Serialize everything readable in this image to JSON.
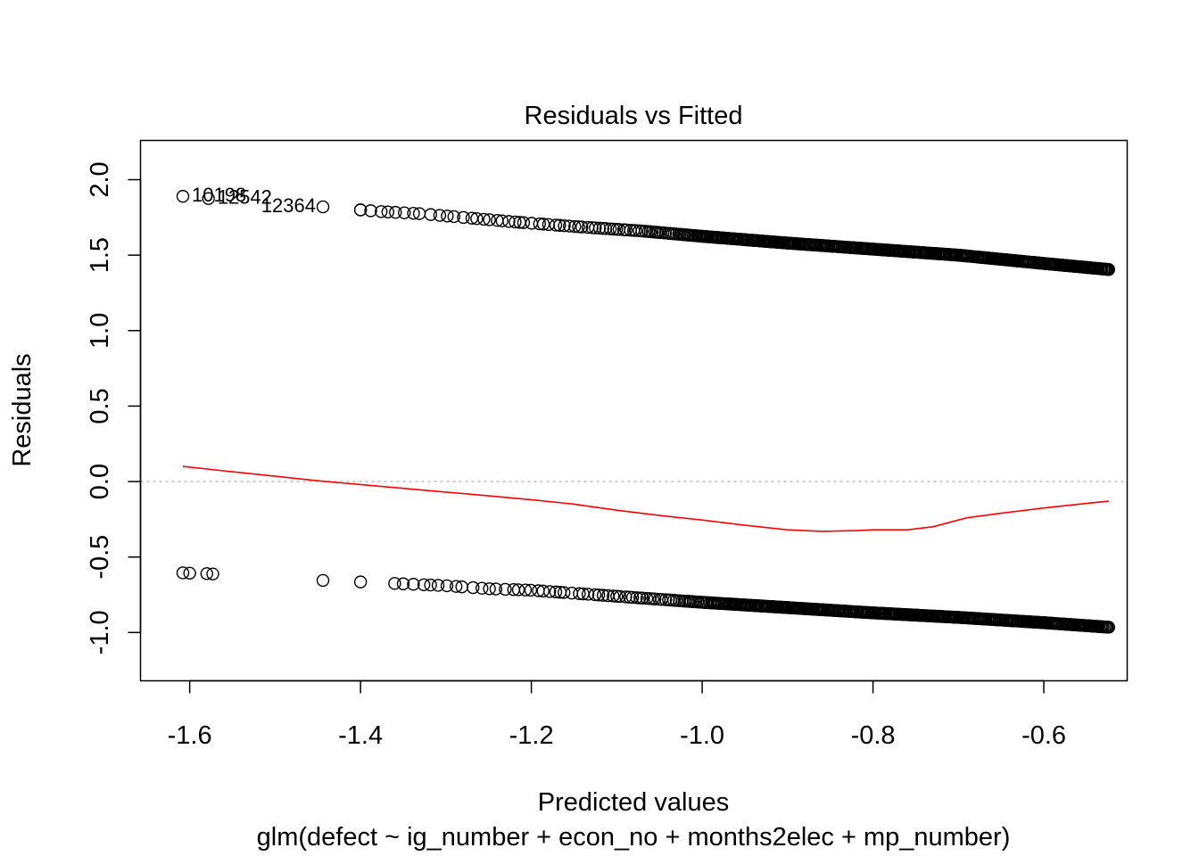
{
  "chart_data": {
    "type": "scatter",
    "title": "Residuals vs Fitted",
    "xlabel": "Predicted values",
    "subtitle": "glm(defect ~ ig_number + econ_no + months2elec + mp_number)",
    "ylabel": "Residuals",
    "xlim": [
      -1.6576,
      -0.5024
    ],
    "ylim": [
      -1.32,
      2.26
    ],
    "xticks": [
      -1.6,
      -1.4,
      -1.2,
      -1.0,
      -0.8,
      -0.6
    ],
    "xtick_labels": [
      "-1.6",
      "-1.4",
      "-1.2",
      "-1.0",
      "-0.8",
      "-0.6"
    ],
    "yticks": [
      -1.0,
      -0.5,
      0.0,
      0.5,
      1.0,
      1.5,
      2.0
    ],
    "ytick_labels": [
      "-1.0",
      "-0.5",
      "0.0",
      "0.5",
      "1.0",
      "1.5",
      "2.0"
    ],
    "reference_line": {
      "y": 0,
      "style": "dotted",
      "color": "#bebebe"
    },
    "upper_band": {
      "x": [
        -1.608,
        -1.578,
        -1.444,
        -1.4,
        -1.38,
        -1.33,
        -1.3,
        -1.27,
        -1.22,
        -1.15,
        -1.07,
        -1.0,
        -0.9,
        -0.8,
        -0.7,
        -0.6,
        -0.524
      ],
      "y": [
        1.89,
        1.875,
        1.82,
        1.8,
        1.79,
        1.775,
        1.76,
        1.745,
        1.72,
        1.69,
        1.66,
        1.625,
        1.58,
        1.54,
        1.5,
        1.445,
        1.405
      ]
    },
    "lower_band": {
      "x": [
        -1.608,
        -1.6,
        -1.58,
        -1.573,
        -1.444,
        -1.4,
        -1.36,
        -1.3,
        -1.25,
        -1.2,
        -1.15,
        -1.1,
        -1.0,
        -0.9,
        -0.8,
        -0.7,
        -0.6,
        -0.524
      ],
      "y": [
        -0.605,
        -0.607,
        -0.61,
        -0.612,
        -0.655,
        -0.665,
        -0.675,
        -0.69,
        -0.71,
        -0.72,
        -0.74,
        -0.76,
        -0.8,
        -0.835,
        -0.87,
        -0.9,
        -0.935,
        -0.965
      ]
    },
    "smooth_line": {
      "color": "#ff0000",
      "x": [
        -1.608,
        -1.55,
        -1.5,
        -1.45,
        -1.4,
        -1.35,
        -1.3,
        -1.25,
        -1.2,
        -1.15,
        -1.1,
        -1.05,
        -1.0,
        -0.95,
        -0.9,
        -0.86,
        -0.82,
        -0.8,
        -0.76,
        -0.73,
        -0.69,
        -0.65,
        -0.6,
        -0.55,
        -0.524
      ],
      "y": [
        0.1,
        0.065,
        0.035,
        0.005,
        -0.02,
        -0.045,
        -0.07,
        -0.095,
        -0.12,
        -0.15,
        -0.19,
        -0.225,
        -0.255,
        -0.29,
        -0.32,
        -0.33,
        -0.325,
        -0.32,
        -0.32,
        -0.3,
        -0.24,
        -0.21,
        -0.175,
        -0.145,
        -0.13
      ]
    },
    "labeled_points": [
      {
        "label": "10198",
        "x": -1.608,
        "y": 1.89
      },
      {
        "label": "12542",
        "x": -1.578,
        "y": 1.875
      },
      {
        "label": "12364",
        "x": -1.444,
        "y": 1.82
      }
    ],
    "legend": "none",
    "grid": false
  }
}
